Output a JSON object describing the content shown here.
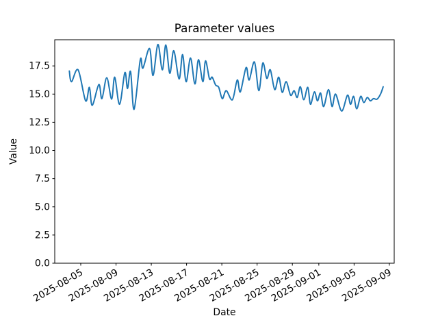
{
  "figure": {
    "title": "Parameter values",
    "xlabel": "Date",
    "ylabel": "Value",
    "line_color": "#1f77b4",
    "axes_color": "#000000",
    "background": "#ffffff"
  },
  "chart_data": {
    "type": "line",
    "title": "Parameter values",
    "xlabel": "Date",
    "ylabel": "Value",
    "grid": false,
    "legend": false,
    "x_unit": "days since 2025-08-05",
    "xlim": [
      -2.95,
      35.55
    ],
    "ylim": [
      0,
      19.82
    ],
    "x_tick_positions": [
      0,
      4,
      8,
      12,
      16,
      20,
      24,
      27,
      31,
      35
    ],
    "x_tick_labels": [
      "2025-08-05",
      "2025-08-09",
      "2025-08-13",
      "2025-08-17",
      "2025-08-21",
      "2025-08-25",
      "2025-08-29",
      "2025-09-01",
      "2025-09-05",
      "2025-09-09"
    ],
    "y_tick_positions": [
      0,
      2.5,
      5,
      7.5,
      10,
      12.5,
      15,
      17.5
    ],
    "y_tick_labels": [
      "0.0",
      "2.5",
      "5.0",
      "7.5",
      "10.0",
      "12.5",
      "15.0",
      "17.5"
    ],
    "series": [
      {
        "name": "parameter-values",
        "color": "#1f77b4",
        "points": [
          [
            -1.3,
            17.05
          ],
          [
            -1.05,
            16.1
          ],
          [
            -0.3,
            17.15
          ],
          [
            0.55,
            14.4
          ],
          [
            0.98,
            15.6
          ],
          [
            1.3,
            14.0
          ],
          [
            2.05,
            15.85
          ],
          [
            2.4,
            14.6
          ],
          [
            2.95,
            16.45
          ],
          [
            3.5,
            14.55
          ],
          [
            3.85,
            16.5
          ],
          [
            4.4,
            14.1
          ],
          [
            5.0,
            16.9
          ],
          [
            5.3,
            15.5
          ],
          [
            5.65,
            17.0
          ],
          [
            6.05,
            13.65
          ],
          [
            6.75,
            18.05
          ],
          [
            7.05,
            17.3
          ],
          [
            7.8,
            19.05
          ],
          [
            8.2,
            16.65
          ],
          [
            8.75,
            19.4
          ],
          [
            9.25,
            17.15
          ],
          [
            9.65,
            19.35
          ],
          [
            10.1,
            16.85
          ],
          [
            10.55,
            18.85
          ],
          [
            11.15,
            16.35
          ],
          [
            11.55,
            18.5
          ],
          [
            11.95,
            16.1
          ],
          [
            12.45,
            18.2
          ],
          [
            12.95,
            15.9
          ],
          [
            13.35,
            18.05
          ],
          [
            13.85,
            16.1
          ],
          [
            14.15,
            17.95
          ],
          [
            14.6,
            16.35
          ],
          [
            14.9,
            16.5
          ],
          [
            15.3,
            15.8
          ],
          [
            15.65,
            15.6
          ],
          [
            16.05,
            14.6
          ],
          [
            16.5,
            15.3
          ],
          [
            17.2,
            14.5
          ],
          [
            17.75,
            16.25
          ],
          [
            18.1,
            15.2
          ],
          [
            18.75,
            17.35
          ],
          [
            19.1,
            16.25
          ],
          [
            19.7,
            17.85
          ],
          [
            20.2,
            15.3
          ],
          [
            20.65,
            17.75
          ],
          [
            21.1,
            16.4
          ],
          [
            21.5,
            17.15
          ],
          [
            22.0,
            15.4
          ],
          [
            22.45,
            16.5
          ],
          [
            22.85,
            15.15
          ],
          [
            23.3,
            16.1
          ],
          [
            23.8,
            14.9
          ],
          [
            24.2,
            15.3
          ],
          [
            24.55,
            14.7
          ],
          [
            24.9,
            15.65
          ],
          [
            25.3,
            14.5
          ],
          [
            25.75,
            15.6
          ],
          [
            26.05,
            14.1
          ],
          [
            26.5,
            15.2
          ],
          [
            26.85,
            14.4
          ],
          [
            27.2,
            15.1
          ],
          [
            27.55,
            13.9
          ],
          [
            28.1,
            15.4
          ],
          [
            28.5,
            13.9
          ],
          [
            28.9,
            15.0
          ],
          [
            29.6,
            13.5
          ],
          [
            30.25,
            14.9
          ],
          [
            30.6,
            14.1
          ],
          [
            30.95,
            14.8
          ],
          [
            31.3,
            13.7
          ],
          [
            31.75,
            14.8
          ],
          [
            32.1,
            14.25
          ],
          [
            32.5,
            14.7
          ],
          [
            32.85,
            14.4
          ],
          [
            33.2,
            14.6
          ],
          [
            33.6,
            14.55
          ],
          [
            34.0,
            15.0
          ],
          [
            34.3,
            15.65
          ]
        ]
      }
    ]
  }
}
